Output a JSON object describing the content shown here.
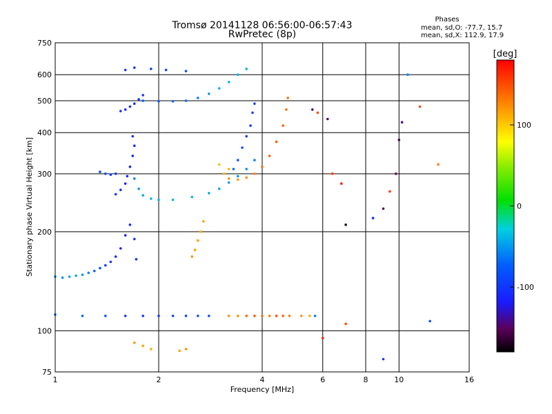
{
  "chart_data": {
    "type": "scatter",
    "title": "Tromsø 20141128 06:56:00-06:57:43",
    "subtitle": "RwPretec (8p)",
    "xlabel": "Frequency [MHz]",
    "ylabel": "Stationary phase Virtual Height [km]",
    "x_scale": "log",
    "y_scale": "log",
    "xlim": [
      1,
      16
    ],
    "ylim": [
      75,
      750
    ],
    "x_ticks": [
      1,
      2,
      4,
      6,
      8,
      10,
      16
    ],
    "y_ticks": [
      75,
      100,
      200,
      300,
      400,
      500,
      600,
      750
    ],
    "grid": true,
    "stats": {
      "title": "Phases",
      "line_o": "mean, sd,O: -77.7, 15.7",
      "line_x": "mean, sd,X: 112.9, 17.9"
    },
    "colorbar": {
      "label": "[deg]",
      "ticks": [
        100,
        0,
        -100
      ],
      "range": [
        -180,
        180
      ]
    },
    "series": [
      {
        "points": [
          [
            1.0,
            146,
            -60
          ],
          [
            1.05,
            145,
            -55
          ],
          [
            1.1,
            146,
            -50
          ],
          [
            1.15,
            147,
            -45
          ],
          [
            1.2,
            148,
            -50
          ],
          [
            1.25,
            150,
            -60
          ],
          [
            1.3,
            152,
            -70
          ],
          [
            1.35,
            155,
            -85
          ],
          [
            1.4,
            158,
            -100
          ],
          [
            1.45,
            162,
            -105
          ],
          [
            1.5,
            168,
            -110
          ],
          [
            1.55,
            178,
            -115
          ],
          [
            1.6,
            195,
            -115
          ],
          [
            1.65,
            210,
            -110
          ],
          [
            1.7,
            190,
            -105
          ],
          [
            1.72,
            165,
            -100
          ]
        ]
      },
      {
        "points": [
          [
            1.5,
            260,
            -100
          ],
          [
            1.55,
            268,
            -105
          ],
          [
            1.6,
            280,
            -110
          ],
          [
            1.62,
            295,
            -115
          ],
          [
            1.65,
            315,
            -115
          ],
          [
            1.68,
            340,
            -115
          ],
          [
            1.7,
            365,
            -110
          ],
          [
            1.68,
            390,
            -110
          ]
        ]
      },
      {
        "points": [
          [
            1.35,
            304,
            -90
          ],
          [
            1.4,
            300,
            -95
          ],
          [
            1.45,
            298,
            -100
          ],
          [
            1.5,
            300,
            -105
          ]
        ]
      },
      {
        "points": [
          [
            1.7,
            290,
            -60
          ],
          [
            1.75,
            270,
            -50
          ],
          [
            1.8,
            258,
            -45
          ],
          [
            1.9,
            252,
            -40
          ],
          [
            2.0,
            250,
            -40
          ],
          [
            2.2,
            250,
            -40
          ],
          [
            2.5,
            255,
            -40
          ],
          [
            2.8,
            262,
            -45
          ],
          [
            3.0,
            270,
            -45
          ],
          [
            3.2,
            282,
            -50
          ],
          [
            3.4,
            295,
            -50
          ],
          [
            3.6,
            310,
            -55
          ],
          [
            3.8,
            330,
            -60
          ]
        ]
      },
      {
        "points": [
          [
            1.55,
            465,
            -110
          ],
          [
            1.6,
            470,
            -110
          ],
          [
            1.65,
            480,
            -110
          ],
          [
            1.7,
            490,
            -105
          ],
          [
            1.75,
            505,
            -100
          ],
          [
            1.8,
            520,
            -100
          ]
        ]
      },
      {
        "points": [
          [
            1.8,
            500,
            -80
          ],
          [
            2.0,
            498,
            -80
          ],
          [
            2.2,
            498,
            -75
          ],
          [
            2.4,
            500,
            -70
          ],
          [
            2.6,
            510,
            -60
          ],
          [
            2.8,
            525,
            -50
          ],
          [
            3.0,
            545,
            -40
          ],
          [
            3.2,
            570,
            -40
          ],
          [
            3.4,
            600,
            -40
          ],
          [
            3.6,
            625,
            -40
          ]
        ]
      },
      {
        "points": [
          [
            1.6,
            620,
            -100
          ],
          [
            1.7,
            630,
            -100
          ],
          [
            1.9,
            625,
            -95
          ],
          [
            2.1,
            620,
            -95
          ],
          [
            2.4,
            615,
            -90
          ]
        ]
      },
      {
        "points": [
          [
            3.3,
            310,
            -70
          ],
          [
            3.4,
            330,
            -80
          ],
          [
            3.5,
            360,
            -90
          ],
          [
            3.6,
            390,
            -100
          ],
          [
            3.7,
            420,
            -100
          ],
          [
            3.75,
            460,
            -95
          ],
          [
            3.8,
            490,
            -90
          ]
        ]
      },
      {
        "points": [
          [
            3.2,
            290,
            125
          ],
          [
            3.4,
            288,
            120
          ],
          [
            3.6,
            292,
            125
          ],
          [
            3.8,
            300,
            130
          ],
          [
            4.0,
            315,
            135
          ],
          [
            4.2,
            340,
            140
          ],
          [
            4.4,
            375,
            145
          ],
          [
            4.6,
            420,
            140
          ],
          [
            4.7,
            470,
            135
          ],
          [
            4.75,
            510,
            135
          ]
        ]
      },
      {
        "points": [
          [
            2.5,
            168,
            120
          ],
          [
            2.55,
            176,
            118
          ],
          [
            2.6,
            188,
            116
          ],
          [
            2.65,
            200,
            115
          ],
          [
            2.7,
            215,
            115
          ]
        ]
      },
      {
        "points": [
          [
            3.1,
            300,
            110
          ],
          [
            3.0,
            320,
            105
          ],
          [
            3.2,
            310,
            110
          ]
        ]
      },
      {
        "points": [
          [
            1.0,
            112,
            -70
          ],
          [
            1.2,
            111,
            -70
          ],
          [
            1.4,
            111,
            -80
          ],
          [
            1.6,
            111,
            -100
          ],
          [
            1.8,
            111,
            -100
          ],
          [
            2.0,
            111,
            -100
          ],
          [
            2.2,
            111,
            -90
          ],
          [
            2.4,
            111,
            -90
          ],
          [
            2.6,
            111,
            -80
          ],
          [
            2.8,
            111,
            -80
          ]
        ]
      },
      {
        "points": [
          [
            3.2,
            111,
            120
          ],
          [
            3.4,
            111,
            120
          ],
          [
            3.6,
            111,
            140
          ],
          [
            3.8,
            111,
            145
          ],
          [
            4.0,
            111,
            135
          ],
          [
            4.2,
            111,
            130
          ],
          [
            4.4,
            111,
            150
          ],
          [
            4.6,
            111,
            140
          ],
          [
            4.8,
            111,
            130
          ],
          [
            5.2,
            111,
            120
          ],
          [
            5.5,
            111,
            110
          ],
          [
            5.7,
            111,
            -60
          ]
        ]
      },
      {
        "points": [
          [
            1.7,
            92,
            120
          ],
          [
            1.8,
            90,
            115
          ],
          [
            1.9,
            88,
            110
          ],
          [
            2.3,
            87,
            115
          ],
          [
            2.4,
            88,
            120
          ]
        ]
      },
      {
        "points": [
          [
            5.6,
            470,
            -150
          ],
          [
            5.8,
            460,
            150
          ],
          [
            6.2,
            440,
            -150
          ],
          [
            6.4,
            300,
            160
          ],
          [
            6.8,
            280,
            170
          ],
          [
            7.0,
            210,
            -170
          ],
          [
            8.4,
            220,
            -110
          ],
          [
            9.0,
            235,
            -150
          ],
          [
            9.4,
            265,
            160
          ],
          [
            9.8,
            300,
            -150
          ],
          [
            10.0,
            380,
            -160
          ],
          [
            10.2,
            430,
            -140
          ],
          [
            10.6,
            600,
            -60
          ],
          [
            11.5,
            480,
            150
          ],
          [
            13.0,
            320,
            130
          ],
          [
            12.3,
            107,
            -90
          ],
          [
            9.0,
            82,
            -100
          ],
          [
            7.0,
            105,
            150
          ],
          [
            6.0,
            95,
            170
          ]
        ]
      }
    ]
  }
}
